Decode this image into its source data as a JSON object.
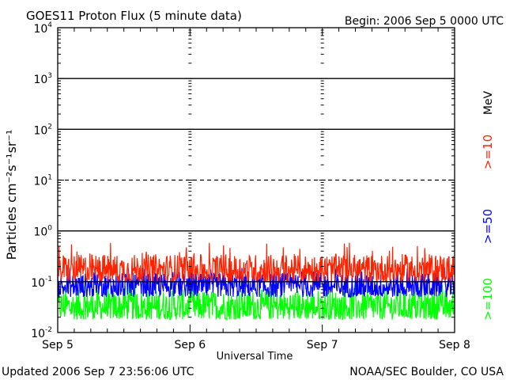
{
  "header": {
    "title": "GOES11 Proton Flux (5 minute data)",
    "begin": "Begin: 2006 Sep 5 0000 UTC"
  },
  "footer": {
    "updated": "Updated 2006 Sep  7 23:56:06 UTC",
    "credit": "NOAA/SEC Boulder, CO USA"
  },
  "chart_data": {
    "type": "line",
    "title": "GOES11 Proton Flux (5 minute data)",
    "xlabel": "Universal Time",
    "ylabel": "Particles cm⁻²s⁻¹sr⁻¹",
    "yscale": "log",
    "ylim": [
      0.01,
      10000
    ],
    "xlim": [
      "2006-09-05 00:00",
      "2006-09-08 00:00"
    ],
    "x_ticks": [
      "Sep 5",
      "Sep 6",
      "Sep 7",
      "Sep 8"
    ],
    "y_ticks": [
      {
        "base": "10",
        "exp": "-2"
      },
      {
        "base": "10",
        "exp": "-1"
      },
      {
        "base": "10",
        "exp": "0"
      },
      {
        "base": "10",
        "exp": "1"
      },
      {
        "base": "10",
        "exp": "2"
      },
      {
        "base": "10",
        "exp": "3"
      },
      {
        "base": "10",
        "exp": "4"
      }
    ],
    "reference_lines": [
      {
        "value": 1,
        "style": "solid"
      },
      {
        "value": 10,
        "style": "dashed"
      },
      {
        "value": 100,
        "style": "solid"
      },
      {
        "value": 1000,
        "style": "solid"
      },
      {
        "value": 0.1,
        "style": "solid"
      }
    ],
    "unit_label": "MeV",
    "series": [
      {
        "name": ">=10",
        "color": "#ff2200",
        "typical_range": [
          0.1,
          0.35
        ],
        "peak": 0.6
      },
      {
        "name": ">=50",
        "color": "#0000ff",
        "typical_range": [
          0.05,
          0.15
        ],
        "peak": 0.2
      },
      {
        "name": ">=100",
        "color": "#00ff00",
        "typical_range": [
          0.018,
          0.07
        ],
        "peak": 0.09
      }
    ]
  }
}
